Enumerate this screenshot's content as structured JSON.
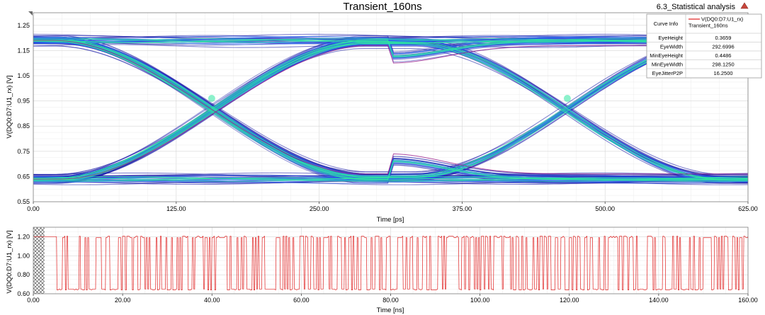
{
  "window": {
    "analysis_title": "6.3_Statistical analysis",
    "corner_icon": "triangle-marker-icon"
  },
  "colors": {
    "eye_dark": "#1a1aa8",
    "eye_mid": "#2b6cf5",
    "eye_hot": "#2ee6a0",
    "eye_edge": "#9a1f8c",
    "wave": "#e02020",
    "grid": "#d6d6d6"
  },
  "curve_info": {
    "header_label": "Curve Info",
    "legend_line1": "V(DQ0:D7:U1_rx)",
    "legend_line2": "Transient_160ns",
    "rows": [
      {
        "label": "EyeHeight",
        "value": "0.3659"
      },
      {
        "label": "EyeWidth",
        "value": "292.6996"
      },
      {
        "label": "MinEyeHeight",
        "value": "0.4486"
      },
      {
        "label": "MinEyeWidth",
        "value": "298.1250"
      },
      {
        "label": "EyeJitterP2P",
        "value": "16.2500"
      }
    ]
  },
  "chart_data": [
    {
      "type": "line",
      "subtype": "eye-diagram",
      "title": "Transient_160ns",
      "xlabel": "Time [ps]",
      "ylabel": "V(DQ0:D7:U1_rx) [V]",
      "xlim": [
        0,
        625
      ],
      "ylim": [
        0.55,
        1.3
      ],
      "xticks": [
        "0.00",
        "125.00",
        "250.00",
        "375.00",
        "500.00",
        "625.00"
      ],
      "yticks": [
        "0.55",
        "0.65",
        "0.75",
        "0.85",
        "0.95",
        "1.05",
        "1.15",
        "1.25"
      ],
      "grid": true,
      "crossings_ps": [
        156,
        467
      ],
      "crossing_level_v": 0.96,
      "high_level_v": 1.19,
      "low_level_v": 0.64,
      "high_dip_v": 1.12,
      "low_bump_v": 0.72,
      "series": [
        {
          "name": "V(DQ0:D7:U1_rx)",
          "trace": "rising-falling-transitions"
        }
      ]
    },
    {
      "type": "line",
      "subtype": "transient-waveform",
      "xlabel": "Time [ns]",
      "ylabel": "V(DQ0:D7:U1_rx) [V]",
      "xlim": [
        0,
        160
      ],
      "ylim": [
        0.6,
        1.3
      ],
      "xticks": [
        "0.00",
        "20.00",
        "40.00",
        "60.00",
        "80.00",
        "100.00",
        "120.00",
        "140.00",
        "160.00"
      ],
      "yticks": [
        "0.60",
        "0.80",
        "1.00",
        "1.20"
      ],
      "grid": true,
      "unit_interval_ns": 0.3125,
      "hatched_region_ns": [
        0,
        2.5
      ],
      "high_level_v": 1.2,
      "low_level_v": 0.64,
      "series": [
        {
          "name": "V(DQ0:D7:U1_rx)",
          "trace": "pseudo-random-bit-stream"
        }
      ]
    }
  ]
}
